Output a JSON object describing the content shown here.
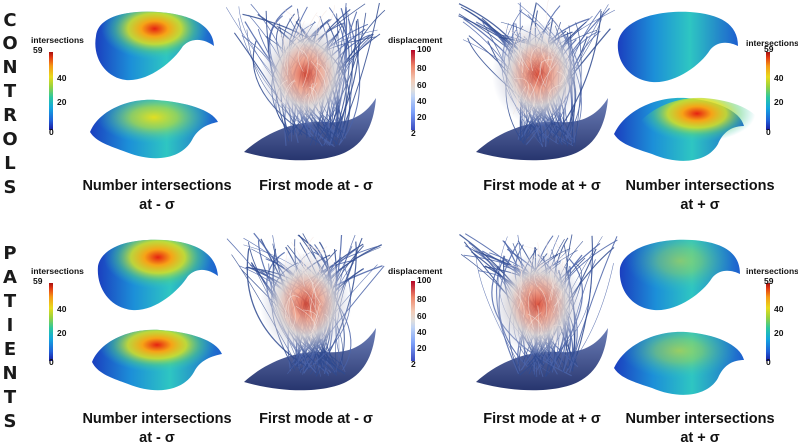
{
  "groups": [
    {
      "letters": [
        "C",
        "O",
        "N",
        "T",
        "R",
        "O",
        "L",
        "S"
      ]
    },
    {
      "letters": [
        "P",
        "A",
        "T",
        "I",
        "E",
        "N",
        "T",
        "S"
      ]
    }
  ],
  "captions": {
    "controls": {
      "num_minus": "Number intersections",
      "num_minus_sigma": "at - σ",
      "mode_minus": "First mode at - σ",
      "mode_plus": "First mode at + σ",
      "num_plus": "Number intersections",
      "num_plus_sigma": "at + σ"
    },
    "patients": {
      "num_minus": "Number intersections",
      "num_minus_sigma": "at - σ",
      "mode_minus": "First mode at - σ",
      "mode_plus": "First mode at + σ",
      "num_plus": "Number intersections",
      "num_plus_sigma": "at + σ"
    }
  },
  "intersections_scale": {
    "title": "intersections",
    "ticks": [
      "59",
      "40",
      "20",
      "0"
    ]
  },
  "displacement_scale": {
    "title": "displacement",
    "ticks": [
      "100",
      "80",
      "60",
      "40",
      "20",
      "2"
    ]
  },
  "colors": {
    "heat_low": "#1a1aa0",
    "heat_high": "#a80f0f",
    "fiber_blue": "#2f4a8f",
    "displacement_high": "#b40426"
  }
}
